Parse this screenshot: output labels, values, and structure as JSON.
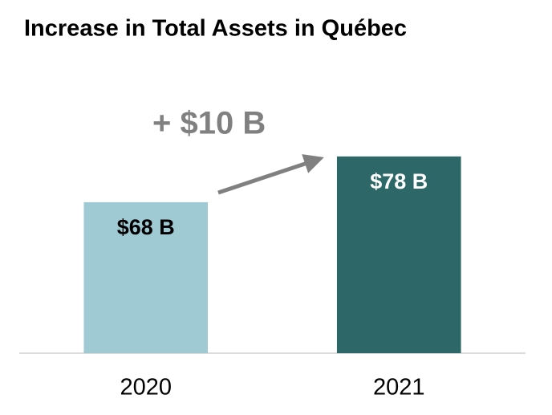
{
  "chart_data": {
    "type": "bar",
    "title": "Increase in Total Assets in Québec",
    "annotation": "+ $10 B",
    "categories": [
      "2020",
      "2021"
    ],
    "values": [
      68,
      78
    ],
    "value_labels": [
      "$68 B",
      "$78 B"
    ],
    "colors": [
      "#9fc9d3",
      "#2d6767"
    ],
    "ylim": [
      35,
      100
    ]
  }
}
